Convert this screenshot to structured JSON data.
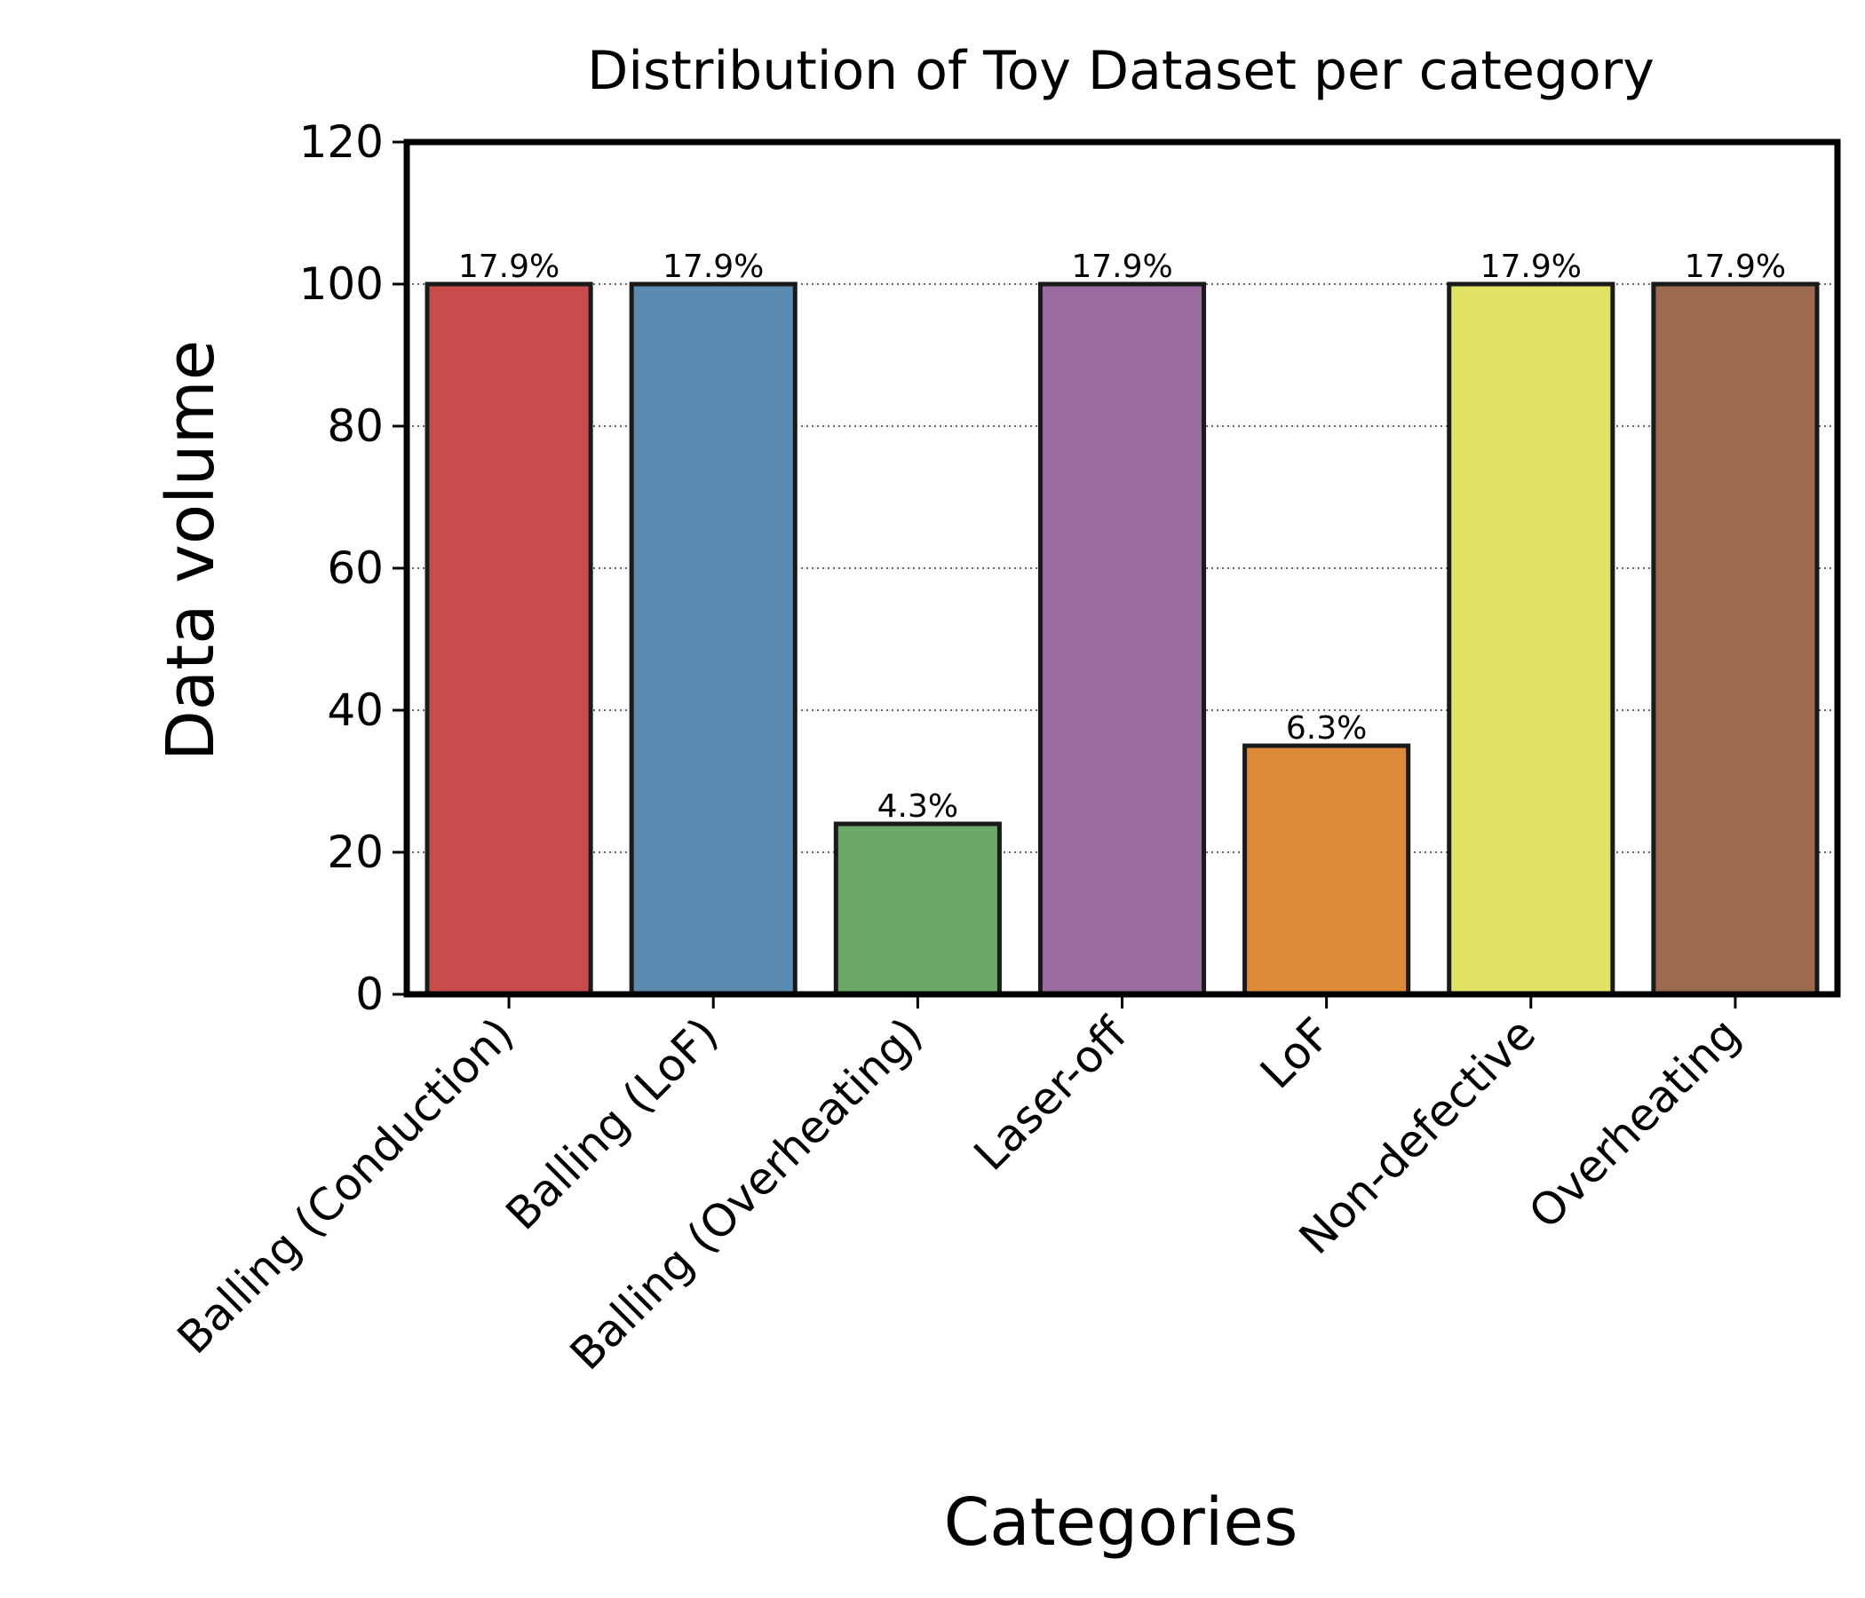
{
  "chart_data": {
    "type": "bar",
    "title": "Distribution of Toy Dataset per category",
    "xlabel": "Categories",
    "ylabel": "Data volume",
    "ylim": [
      0,
      120
    ],
    "yticks": [
      0,
      20,
      40,
      60,
      80,
      100,
      120
    ],
    "categories": [
      "Balling (Conduction)",
      "Balling (LoF)",
      "Balling (Overheating)",
      "Laser-off",
      "LoF",
      "Non-defective",
      "Overheating"
    ],
    "values": [
      100,
      100,
      24,
      100,
      35,
      100,
      100
    ],
    "data_labels": [
      "17.9%",
      "17.9%",
      "4.3%",
      "17.9%",
      "6.3%",
      "17.9%",
      "17.9%"
    ],
    "colors": [
      "#c94c4c",
      "#5b8ab0",
      "#6aa866",
      "#9a6b9e",
      "#dd8a3a",
      "#e2e364",
      "#9b6a4f"
    ],
    "grid": "y-dotted",
    "legend": "none"
  }
}
